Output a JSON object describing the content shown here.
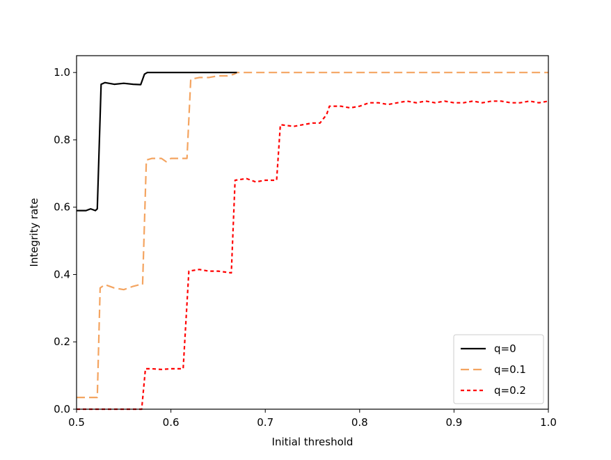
{
  "chart_data": {
    "type": "line",
    "title": "",
    "xlabel": "Initial threshold",
    "ylabel": "Integrity rate",
    "xlim": [
      0.5,
      1.0
    ],
    "ylim": [
      0.0,
      1.05
    ],
    "xticks": [
      "0.5",
      "0.6",
      "0.7",
      "0.8",
      "0.9",
      "1.0"
    ],
    "xtick_values": [
      0.5,
      0.6,
      0.7,
      0.8,
      0.9,
      1.0
    ],
    "yticks": [
      "0.0",
      "0.2",
      "0.4",
      "0.6",
      "0.8",
      "1.0"
    ],
    "ytick_values": [
      0.0,
      0.2,
      0.4,
      0.6,
      0.8,
      1.0
    ],
    "grid": false,
    "legend_position": "bottom-right",
    "series": [
      {
        "name": "q=0",
        "color": "#000000",
        "style": "solid",
        "points": [
          [
            0.5,
            0.59
          ],
          [
            0.51,
            0.59
          ],
          [
            0.515,
            0.595
          ],
          [
            0.52,
            0.59
          ],
          [
            0.522,
            0.595
          ],
          [
            0.526,
            0.965
          ],
          [
            0.53,
            0.97
          ],
          [
            0.54,
            0.965
          ],
          [
            0.55,
            0.968
          ],
          [
            0.56,
            0.965
          ],
          [
            0.568,
            0.964
          ],
          [
            0.572,
            0.995
          ],
          [
            0.575,
            1.0
          ],
          [
            0.6,
            1.0
          ],
          [
            0.65,
            1.0
          ],
          [
            0.67,
            1.0
          ]
        ]
      },
      {
        "name": "q=0.1",
        "color": "#f4a460",
        "style": "dashed",
        "points": [
          [
            0.5,
            0.035
          ],
          [
            0.51,
            0.035
          ],
          [
            0.52,
            0.035
          ],
          [
            0.522,
            0.035
          ],
          [
            0.525,
            0.36
          ],
          [
            0.53,
            0.37
          ],
          [
            0.54,
            0.36
          ],
          [
            0.55,
            0.355
          ],
          [
            0.56,
            0.365
          ],
          [
            0.567,
            0.37
          ],
          [
            0.57,
            0.37
          ],
          [
            0.574,
            0.74
          ],
          [
            0.58,
            0.745
          ],
          [
            0.59,
            0.745
          ],
          [
            0.595,
            0.735
          ],
          [
            0.6,
            0.745
          ],
          [
            0.61,
            0.745
          ],
          [
            0.617,
            0.745
          ],
          [
            0.621,
            0.98
          ],
          [
            0.63,
            0.985
          ],
          [
            0.64,
            0.985
          ],
          [
            0.65,
            0.99
          ],
          [
            0.66,
            0.99
          ],
          [
            0.667,
            0.995
          ],
          [
            0.67,
            1.0
          ],
          [
            0.7,
            1.0
          ],
          [
            0.8,
            1.0
          ],
          [
            0.9,
            1.0
          ],
          [
            1.0,
            1.0
          ]
        ]
      },
      {
        "name": "q=0.2",
        "color": "#ff0000",
        "style": "dotted",
        "points": [
          [
            0.5,
            0.0
          ],
          [
            0.56,
            0.0
          ],
          [
            0.569,
            0.0
          ],
          [
            0.573,
            0.12
          ],
          [
            0.58,
            0.12
          ],
          [
            0.59,
            0.118
          ],
          [
            0.6,
            0.12
          ],
          [
            0.613,
            0.12
          ],
          [
            0.619,
            0.41
          ],
          [
            0.63,
            0.415
          ],
          [
            0.64,
            0.41
          ],
          [
            0.65,
            0.41
          ],
          [
            0.664,
            0.405
          ],
          [
            0.668,
            0.68
          ],
          [
            0.68,
            0.685
          ],
          [
            0.69,
            0.675
          ],
          [
            0.7,
            0.68
          ],
          [
            0.712,
            0.68
          ],
          [
            0.716,
            0.845
          ],
          [
            0.73,
            0.84
          ],
          [
            0.74,
            0.845
          ],
          [
            0.75,
            0.85
          ],
          [
            0.758,
            0.85
          ],
          [
            0.765,
            0.875
          ],
          [
            0.768,
            0.9
          ],
          [
            0.78,
            0.9
          ],
          [
            0.79,
            0.895
          ],
          [
            0.8,
            0.9
          ],
          [
            0.81,
            0.91
          ],
          [
            0.82,
            0.91
          ],
          [
            0.83,
            0.905
          ],
          [
            0.84,
            0.91
          ],
          [
            0.85,
            0.915
          ],
          [
            0.86,
            0.91
          ],
          [
            0.87,
            0.915
          ],
          [
            0.88,
            0.91
          ],
          [
            0.89,
            0.915
          ],
          [
            0.9,
            0.91
          ],
          [
            0.91,
            0.91
          ],
          [
            0.92,
            0.915
          ],
          [
            0.93,
            0.91
          ],
          [
            0.94,
            0.915
          ],
          [
            0.95,
            0.915
          ],
          [
            0.96,
            0.91
          ],
          [
            0.97,
            0.91
          ],
          [
            0.98,
            0.915
          ],
          [
            0.99,
            0.91
          ],
          [
            1.0,
            0.915
          ]
        ]
      }
    ]
  }
}
